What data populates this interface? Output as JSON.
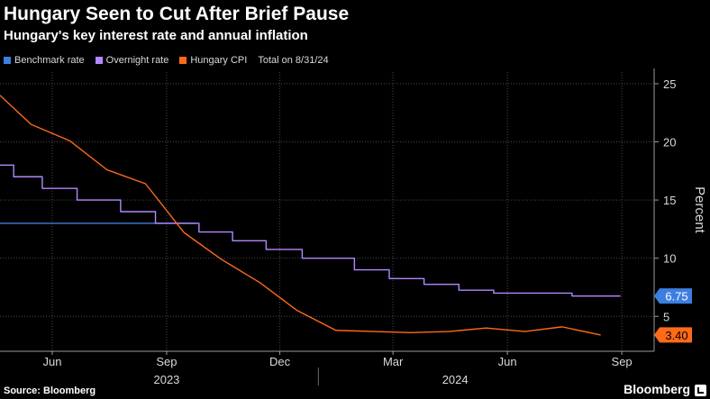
{
  "chart_data": {
    "type": "line",
    "title": "Hungary Seen to Cut After Brief Pause",
    "subtitle": "Hungary's key interest rate and annual inflation",
    "ylabel": "Percent",
    "ylim": [
      2,
      26
    ],
    "yticks": [
      5,
      10,
      15,
      20,
      25
    ],
    "xlim": [
      "2023-04-20",
      "2024-09-27"
    ],
    "xticks": [
      {
        "date": "2023-06-01",
        "label": "Jun"
      },
      {
        "date": "2023-09-01",
        "label": "Sep"
      },
      {
        "date": "2023-12-01",
        "label": "Dec"
      },
      {
        "date": "2024-03-01",
        "label": "Mar"
      },
      {
        "date": "2024-06-01",
        "label": "Jun"
      },
      {
        "date": "2024-09-01",
        "label": "Sep"
      }
    ],
    "years": [
      {
        "date": "2023-09-01",
        "label": "2023"
      },
      {
        "date": "2024-04-20",
        "label": "2024"
      }
    ],
    "year_divider": "2024-01-01",
    "legend_position": "top-left",
    "legend_note": "Total on 8/31/24",
    "grid": true,
    "series": [
      {
        "name": "Benchmark rate",
        "color": "#3d7fe0",
        "step": false,
        "points": [
          {
            "x": "2023-04-20",
            "y": 13.0
          },
          {
            "x": "2023-09-25",
            "y": 13.0
          }
        ]
      },
      {
        "name": "Overnight rate",
        "color": "#b388ff",
        "step": true,
        "end_label": "6.75",
        "end_label_color": "#3d7fe0",
        "points": [
          {
            "x": "2023-04-20",
            "y": 18.0
          },
          {
            "x": "2023-05-01",
            "y": 17.0
          },
          {
            "x": "2023-05-24",
            "y": 16.0
          },
          {
            "x": "2023-06-21",
            "y": 15.0
          },
          {
            "x": "2023-07-26",
            "y": 14.0
          },
          {
            "x": "2023-08-23",
            "y": 13.0
          },
          {
            "x": "2023-09-27",
            "y": 12.25
          },
          {
            "x": "2023-10-24",
            "y": 11.5
          },
          {
            "x": "2023-11-20",
            "y": 10.75
          },
          {
            "x": "2023-12-19",
            "y": 10.0
          },
          {
            "x": "2024-01-30",
            "y": 9.0
          },
          {
            "x": "2024-02-27",
            "y": 8.25
          },
          {
            "x": "2024-03-26",
            "y": 7.75
          },
          {
            "x": "2024-04-23",
            "y": 7.25
          },
          {
            "x": "2024-05-21",
            "y": 7.0
          },
          {
            "x": "2024-06-18",
            "y": 7.0
          },
          {
            "x": "2024-07-23",
            "y": 6.75
          },
          {
            "x": "2024-08-31",
            "y": 6.75
          }
        ]
      },
      {
        "name": "Hungary CPI",
        "color": "#ff6a1a",
        "step": false,
        "end_label": "3.40",
        "end_label_color": "#ff6a1a",
        "points": [
          {
            "x": "2023-04-20",
            "y": 24.0
          },
          {
            "x": "2023-05-15",
            "y": 21.5
          },
          {
            "x": "2023-06-15",
            "y": 20.1
          },
          {
            "x": "2023-07-15",
            "y": 17.6
          },
          {
            "x": "2023-08-15",
            "y": 16.4
          },
          {
            "x": "2023-09-15",
            "y": 12.2
          },
          {
            "x": "2023-10-15",
            "y": 9.9
          },
          {
            "x": "2023-11-15",
            "y": 7.9
          },
          {
            "x": "2023-12-15",
            "y": 5.5
          },
          {
            "x": "2024-01-15",
            "y": 3.8
          },
          {
            "x": "2024-02-15",
            "y": 3.7
          },
          {
            "x": "2024-03-15",
            "y": 3.6
          },
          {
            "x": "2024-04-15",
            "y": 3.7
          },
          {
            "x": "2024-05-15",
            "y": 4.0
          },
          {
            "x": "2024-06-15",
            "y": 3.7
          },
          {
            "x": "2024-07-15",
            "y": 4.1
          },
          {
            "x": "2024-08-15",
            "y": 3.4
          }
        ]
      }
    ]
  },
  "source": "Source: Bloomberg",
  "brand": "Bloomberg"
}
